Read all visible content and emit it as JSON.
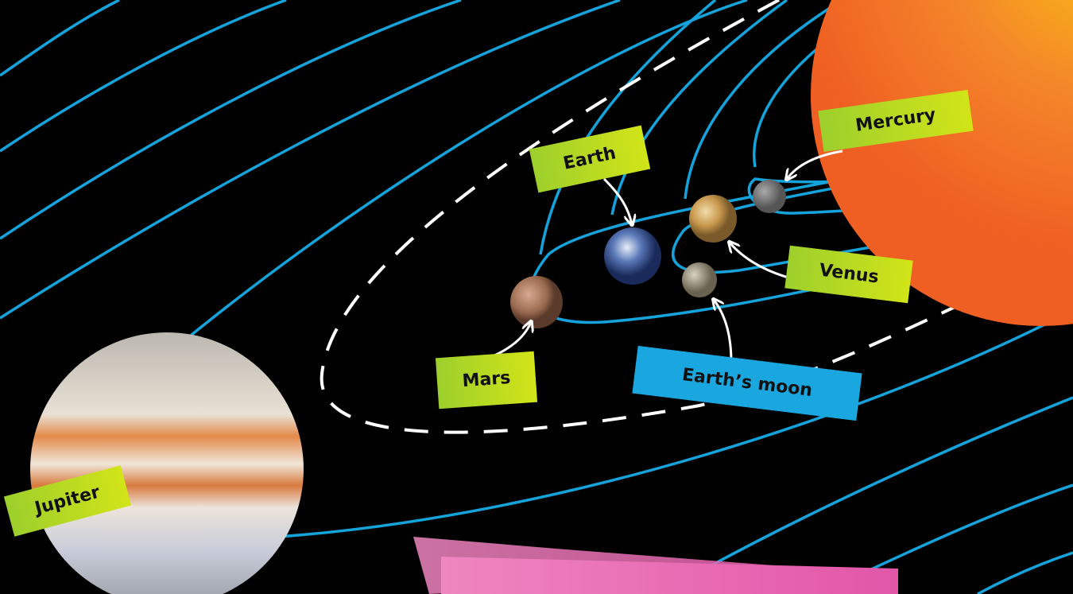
{
  "labels": [
    "Mercury",
    "Earth",
    "Venus",
    "Mars",
    "Earth’s moon",
    "Jupiter"
  ]
}
